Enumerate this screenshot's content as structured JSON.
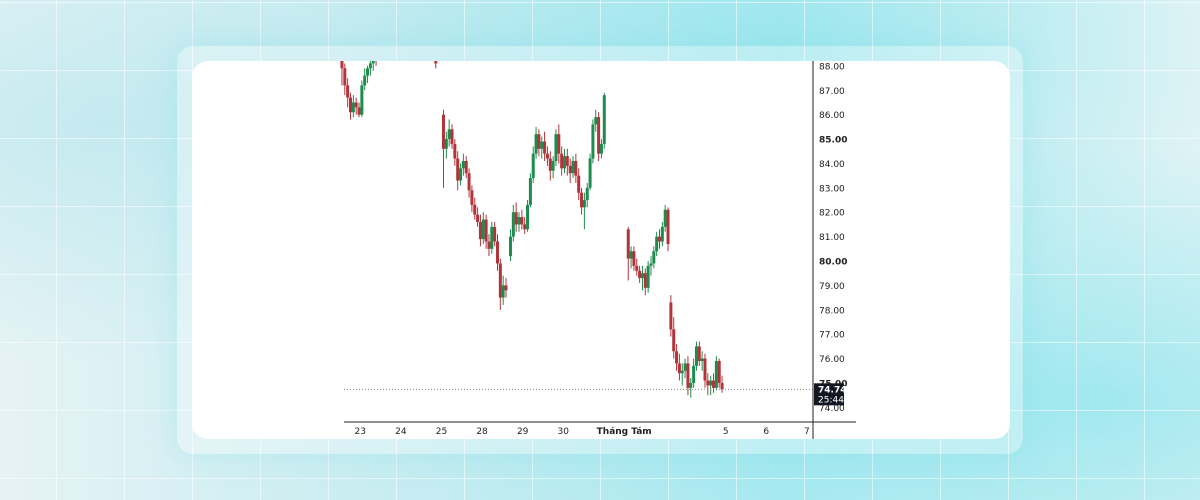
{
  "chart_data": {
    "type": "candlestick",
    "colors": {
      "up": "#1e8c4e",
      "down": "#b2343b",
      "axis": "#222222",
      "grid": "#888888",
      "last_price_bg": "#131722"
    },
    "y_ticks": [
      "88.00",
      "87.00",
      "86.00",
      "85.00",
      "84.00",
      "83.00",
      "82.00",
      "81.00",
      "80.00",
      "79.00",
      "78.00",
      "77.00",
      "76.00",
      "75.00",
      "74.00"
    ],
    "y_bold_ticks": [
      "85.00",
      "80.00",
      "75.00"
    ],
    "ylim": [
      73.4,
      88.2
    ],
    "x_labels": [
      {
        "label": "23",
        "x": 0.5
      },
      {
        "label": "24",
        "x": 1.5
      },
      {
        "label": "25",
        "x": 2.5
      },
      {
        "label": "28",
        "x": 3.5
      },
      {
        "label": "29",
        "x": 4.5
      },
      {
        "label": "30",
        "x": 5.5
      },
      {
        "label": "Tháng Tám",
        "x": 7.0,
        "bold": true
      },
      {
        "label": "5",
        "x": 9.5
      },
      {
        "label": "6",
        "x": 10.5
      },
      {
        "label": "7",
        "x": 11.5
      }
    ],
    "xlim": [
      0.1,
      11.65
    ],
    "last_price": "74.74",
    "countdown": "25:44",
    "last_price_value": 74.74,
    "candles": [
      [
        0.05,
        88.2,
        88.8,
        87.2,
        87.9
      ],
      [
        0.12,
        87.9,
        88.1,
        86.8,
        87.2
      ],
      [
        0.19,
        87.2,
        87.5,
        86.3,
        86.7
      ],
      [
        0.26,
        86.7,
        86.9,
        85.8,
        86.1
      ],
      [
        0.33,
        86.1,
        86.8,
        85.9,
        86.5
      ],
      [
        0.4,
        86.5,
        86.7,
        86.0,
        86.3
      ],
      [
        0.47,
        86.3,
        86.5,
        85.9,
        86.0
      ],
      [
        0.54,
        86.0,
        87.4,
        85.9,
        87.2
      ],
      [
        0.61,
        87.2,
        87.9,
        87.0,
        87.6
      ],
      [
        0.68,
        87.6,
        88.0,
        87.3,
        87.9
      ],
      [
        0.75,
        87.9,
        88.3,
        87.6,
        88.1
      ],
      [
        0.82,
        88.1,
        88.5,
        87.8,
        88.3
      ],
      [
        0.89,
        88.3,
        88.6,
        88.0,
        88.2
      ],
      [
        2.36,
        88.4,
        88.7,
        87.9,
        88.1
      ],
      [
        2.55,
        86.0,
        86.2,
        83.0,
        84.6
      ],
      [
        2.62,
        84.6,
        85.3,
        84.2,
        85.0
      ],
      [
        2.69,
        85.0,
        85.8,
        84.7,
        85.4
      ],
      [
        2.76,
        85.4,
        85.6,
        84.6,
        84.8
      ],
      [
        2.83,
        84.8,
        85.0,
        83.9,
        84.2
      ],
      [
        2.9,
        84.2,
        84.5,
        82.9,
        83.3
      ],
      [
        2.97,
        83.3,
        84.0,
        83.1,
        83.8
      ],
      [
        3.04,
        83.8,
        84.4,
        83.5,
        84.1
      ],
      [
        3.11,
        84.1,
        84.3,
        83.4,
        83.6
      ],
      [
        3.18,
        83.6,
        83.8,
        82.6,
        82.9
      ],
      [
        3.25,
        82.9,
        83.1,
        82.0,
        82.3
      ],
      [
        3.32,
        82.3,
        82.6,
        81.7,
        81.9
      ],
      [
        3.39,
        81.9,
        82.2,
        81.4,
        81.6
      ],
      [
        3.46,
        81.6,
        81.9,
        80.6,
        80.9
      ],
      [
        3.53,
        80.9,
        82.0,
        80.7,
        81.7
      ],
      [
        3.6,
        81.7,
        81.9,
        80.5,
        80.8
      ],
      [
        3.67,
        80.8,
        81.1,
        80.2,
        80.5
      ],
      [
        3.74,
        80.5,
        81.6,
        80.3,
        81.4
      ],
      [
        3.81,
        81.4,
        81.6,
        80.6,
        80.8
      ],
      [
        3.88,
        80.8,
        81.1,
        79.6,
        79.9
      ],
      [
        3.95,
        79.9,
        80.1,
        78.0,
        78.5
      ],
      [
        4.02,
        78.5,
        79.4,
        78.2,
        79.0
      ],
      [
        4.09,
        79.0,
        79.3,
        78.5,
        78.8
      ],
      [
        4.2,
        80.2,
        81.3,
        80.0,
        81.0
      ],
      [
        4.27,
        81.0,
        82.3,
        80.8,
        82.0
      ],
      [
        4.34,
        82.0,
        82.4,
        81.2,
        81.5
      ],
      [
        4.41,
        81.5,
        82.0,
        81.2,
        81.8
      ],
      [
        4.48,
        81.8,
        82.1,
        81.3,
        81.5
      ],
      [
        4.55,
        81.5,
        81.8,
        81.1,
        81.3
      ],
      [
        4.62,
        81.3,
        82.5,
        81.2,
        82.3
      ],
      [
        4.69,
        82.3,
        83.6,
        82.2,
        83.4
      ],
      [
        4.76,
        83.4,
        84.7,
        83.2,
        84.4
      ],
      [
        4.83,
        84.4,
        85.5,
        84.2,
        85.2
      ],
      [
        4.9,
        85.2,
        85.4,
        84.3,
        84.6
      ],
      [
        4.97,
        84.6,
        85.1,
        84.2,
        84.9
      ],
      [
        5.04,
        84.9,
        85.3,
        84.1,
        84.4
      ],
      [
        5.11,
        84.4,
        84.7,
        83.9,
        84.2
      ],
      [
        5.18,
        84.2,
        84.5,
        83.3,
        83.7
      ],
      [
        5.25,
        83.7,
        84.3,
        83.4,
        84.1
      ],
      [
        5.32,
        84.1,
        85.4,
        83.9,
        85.2
      ],
      [
        5.39,
        85.2,
        85.6,
        84.0,
        84.4
      ],
      [
        5.46,
        84.4,
        84.7,
        83.5,
        83.8
      ],
      [
        5.53,
        83.8,
        84.6,
        83.6,
        84.3
      ],
      [
        5.6,
        84.3,
        84.6,
        83.5,
        83.9
      ],
      [
        5.67,
        83.9,
        84.2,
        83.2,
        83.6
      ],
      [
        5.74,
        83.6,
        84.3,
        83.4,
        84.1
      ],
      [
        5.81,
        84.1,
        84.4,
        83.2,
        83.5
      ],
      [
        5.88,
        83.5,
        83.8,
        82.5,
        82.8
      ],
      [
        5.95,
        82.8,
        83.0,
        81.9,
        82.2
      ],
      [
        6.02,
        82.2,
        82.8,
        81.3,
        82.5
      ],
      [
        6.09,
        82.5,
        83.2,
        82.2,
        83.0
      ],
      [
        6.16,
        83.0,
        84.4,
        82.9,
        84.2
      ],
      [
        6.23,
        84.2,
        85.8,
        84.0,
        85.6
      ],
      [
        6.3,
        85.6,
        86.2,
        85.3,
        85.9
      ],
      [
        6.37,
        85.9,
        86.1,
        84.1,
        84.4
      ],
      [
        6.44,
        84.4,
        85.0,
        84.2,
        84.8
      ],
      [
        6.51,
        84.8,
        86.9,
        84.6,
        86.8
      ],
      [
        7.1,
        81.3,
        81.4,
        79.2,
        80.1
      ],
      [
        7.17,
        80.1,
        80.6,
        79.7,
        80.4
      ],
      [
        7.24,
        80.4,
        80.6,
        79.6,
        79.8
      ],
      [
        7.31,
        79.8,
        80.1,
        79.4,
        79.6
      ],
      [
        7.38,
        79.6,
        79.8,
        79.1,
        79.3
      ],
      [
        7.45,
        79.3,
        79.8,
        78.8,
        79.5
      ],
      [
        7.52,
        79.5,
        79.7,
        78.6,
        78.9
      ],
      [
        7.59,
        78.9,
        80.0,
        78.7,
        79.8
      ],
      [
        7.66,
        79.8,
        80.2,
        79.4,
        79.9
      ],
      [
        7.73,
        79.9,
        80.6,
        79.7,
        80.4
      ],
      [
        7.8,
        80.4,
        81.2,
        80.2,
        81.0
      ],
      [
        7.87,
        81.0,
        81.3,
        80.5,
        80.8
      ],
      [
        7.94,
        80.8,
        81.6,
        80.6,
        81.4
      ],
      [
        8.01,
        81.4,
        82.3,
        81.2,
        82.1
      ],
      [
        8.08,
        82.1,
        82.2,
        80.4,
        80.7
      ],
      [
        8.15,
        78.3,
        78.6,
        76.9,
        77.2
      ],
      [
        8.22,
        77.2,
        77.7,
        76.0,
        76.3
      ],
      [
        8.29,
        76.3,
        76.6,
        75.5,
        75.8
      ],
      [
        8.36,
        75.8,
        76.2,
        75.1,
        75.4
      ],
      [
        8.43,
        75.4,
        75.8,
        74.9,
        75.5
      ],
      [
        8.5,
        75.5,
        76.0,
        75.2,
        75.8
      ],
      [
        8.57,
        75.8,
        76.1,
        74.5,
        74.8
      ],
      [
        8.64,
        74.8,
        75.2,
        74.4,
        75.0
      ],
      [
        8.71,
        75.0,
        76.0,
        74.8,
        75.7
      ],
      [
        8.78,
        75.7,
        76.7,
        75.5,
        76.5
      ],
      [
        8.85,
        76.5,
        76.7,
        75.7,
        75.9
      ],
      [
        8.92,
        75.9,
        76.3,
        75.5,
        76.0
      ],
      [
        8.99,
        76.0,
        76.2,
        74.8,
        75.1
      ],
      [
        9.06,
        75.1,
        75.4,
        74.5,
        74.9
      ],
      [
        9.13,
        74.9,
        75.3,
        74.5,
        75.1
      ],
      [
        9.2,
        75.1,
        75.4,
        74.6,
        74.8
      ],
      [
        9.27,
        74.8,
        76.1,
        74.7,
        75.9
      ],
      [
        9.34,
        75.9,
        76.0,
        74.8,
        75.0
      ],
      [
        9.41,
        75.0,
        75.3,
        74.6,
        74.74
      ]
    ]
  }
}
